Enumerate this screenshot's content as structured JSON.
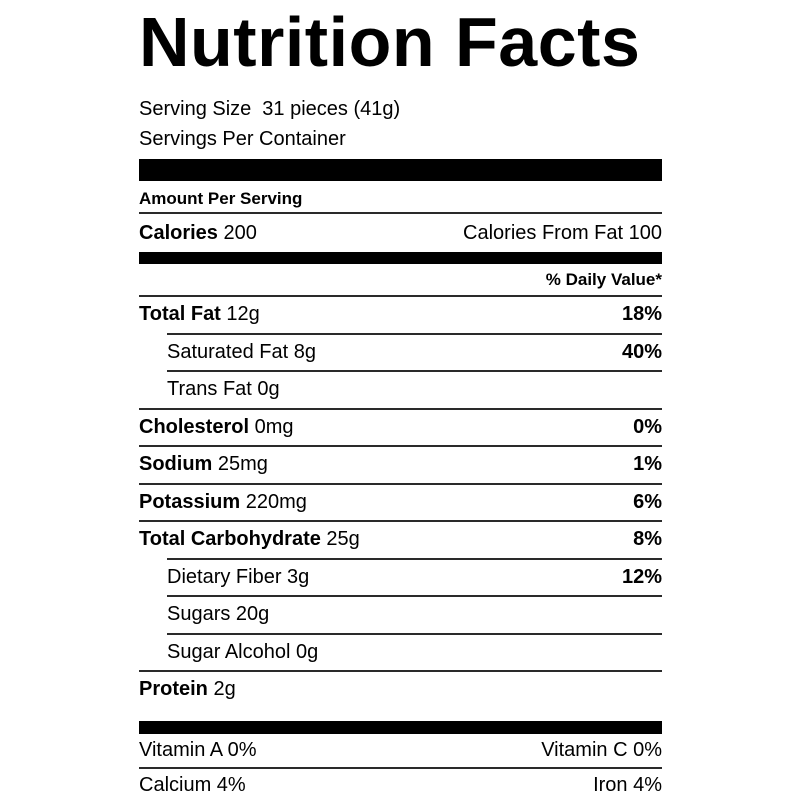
{
  "title": "Nutrition Facts",
  "serving": {
    "serving_size_label": "Serving Size",
    "serving_size_value": "31 pieces (41g)",
    "servings_per_container": "Servings Per Container"
  },
  "amount_per_serving_label": "Amount Per Serving",
  "calories": {
    "label": "Calories",
    "value": "200",
    "from_fat": "Calories From Fat 100"
  },
  "daily_value_header": "% Daily Value*",
  "nutrients": [
    {
      "name": "Total Fat",
      "amount": "12g",
      "dv": "18%",
      "bold": true,
      "indent": false
    },
    {
      "name": "Saturated Fat",
      "amount": "8g",
      "dv": "40%",
      "bold": false,
      "indent": true
    },
    {
      "name": "Trans Fat",
      "amount": "0g",
      "dv": "",
      "bold": false,
      "indent": true
    },
    {
      "name": "Cholesterol",
      "amount": "0mg",
      "dv": "0%",
      "bold": true,
      "indent": false
    },
    {
      "name": "Sodium",
      "amount": "25mg",
      "dv": "1%",
      "bold": true,
      "indent": false
    },
    {
      "name": "Potassium",
      "amount": "220mg",
      "dv": "6%",
      "bold": true,
      "indent": false
    },
    {
      "name": "Total Carbohydrate",
      "amount": "25g",
      "dv": "8%",
      "bold": true,
      "indent": false
    },
    {
      "name": "Dietary Fiber",
      "amount": "3g",
      "dv": "12%",
      "bold": false,
      "indent": true
    },
    {
      "name": "Sugars",
      "amount": "20g",
      "dv": "",
      "bold": false,
      "indent": true
    },
    {
      "name": "Sugar Alcohol",
      "amount": "0g",
      "dv": "",
      "bold": false,
      "indent": true
    },
    {
      "name": "Protein",
      "amount": "2g",
      "dv": "",
      "bold": true,
      "indent": false
    }
  ],
  "micronutrients": [
    {
      "left": "Vitamin A 0%",
      "right": "Vitamin C 0%"
    },
    {
      "left": "Calcium 4%",
      "right": "Iron 4%"
    }
  ],
  "colors": {
    "background": "#ffffff",
    "text": "#000000",
    "bar": "#000000",
    "rule": "#2a2a2a"
  }
}
